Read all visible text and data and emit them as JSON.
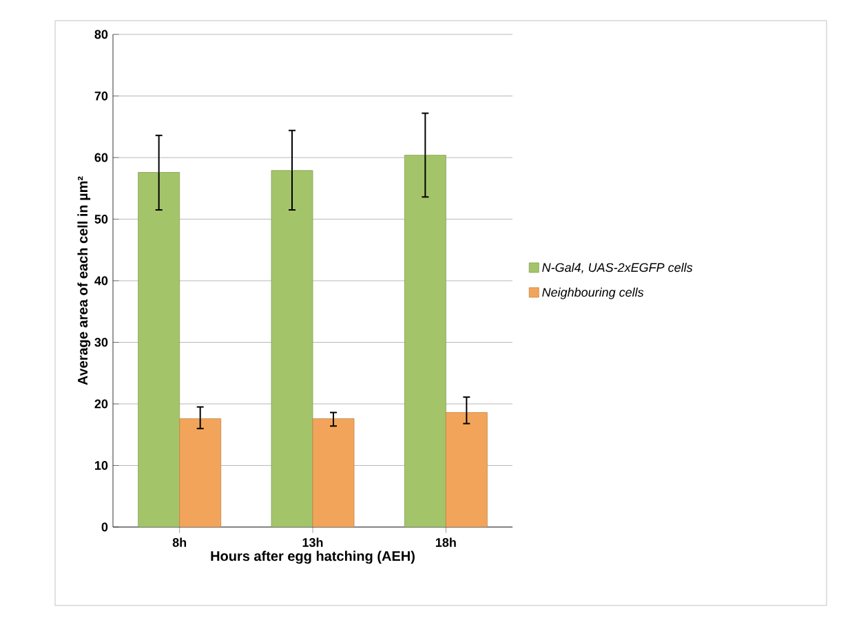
{
  "chart_data": {
    "type": "bar",
    "xlabel": "Hours after egg hatching (AEH)",
    "ylabel": "Average  area of each cell in µm²",
    "categories": [
      "8h",
      "13h",
      "18h"
    ],
    "series": [
      {
        "name": "N-Gal4, UAS-2xEGFP cells",
        "color": "#a4c46a",
        "values": [
          57.6,
          57.9,
          60.4
        ],
        "errors": [
          [
            51.5,
            63.6
          ],
          [
            51.5,
            64.4
          ],
          [
            53.6,
            67.2
          ]
        ]
      },
      {
        "name": "Neighbouring cells",
        "color": "#f2a55a",
        "values": [
          17.6,
          17.6,
          18.6
        ],
        "errors": [
          [
            16.0,
            19.5
          ],
          [
            16.4,
            18.6
          ],
          [
            16.8,
            21.1
          ]
        ]
      }
    ],
    "ylim": [
      0,
      80
    ],
    "yticks": [
      0,
      10,
      20,
      30,
      40,
      50,
      60,
      70,
      80
    ],
    "grid": "y",
    "legend": "right"
  }
}
